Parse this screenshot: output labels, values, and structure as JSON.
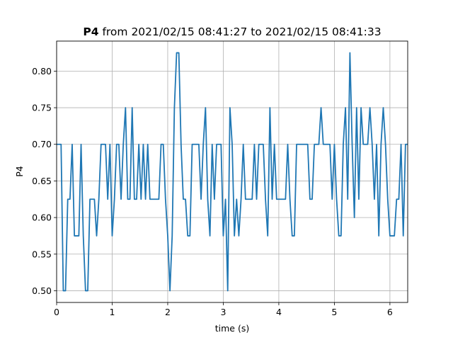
{
  "chart_data": {
    "type": "line",
    "title_bold": "P4",
    "title_rest": " from 2021/02/15 08:41:27 to 2021/02/15 08:41:33",
    "xlabel": "time (s)",
    "ylabel": "P4",
    "xlim": [
      0,
      6.32
    ],
    "ylim": [
      0.484,
      0.841
    ],
    "xticks": [
      0,
      1,
      2,
      3,
      4,
      5,
      6
    ],
    "yticks": [
      0.5,
      0.55,
      0.6,
      0.65,
      0.7,
      0.75,
      0.8
    ],
    "grid": true,
    "line_color": "#1f77b4",
    "series": [
      {
        "x": [
          0.0,
          0.08,
          0.12,
          0.16,
          0.2,
          0.24,
          0.28,
          0.32,
          0.36,
          0.4,
          0.44,
          0.48,
          0.52,
          0.56,
          0.6,
          0.64,
          0.68,
          0.72,
          0.76,
          0.8,
          0.84,
          0.88,
          0.92,
          0.96,
          1.0,
          1.04,
          1.08,
          1.12,
          1.16,
          1.2,
          1.24,
          1.28,
          1.32,
          1.36,
          1.4,
          1.44,
          1.48,
          1.52,
          1.56,
          1.6,
          1.64,
          1.68,
          1.72,
          1.76,
          1.8,
          1.84,
          1.88,
          1.92,
          1.96,
          2.0,
          2.04,
          2.08,
          2.12,
          2.16,
          2.2,
          2.24,
          2.28,
          2.32,
          2.36,
          2.4,
          2.44,
          2.48,
          2.52,
          2.56,
          2.6,
          2.64,
          2.68,
          2.72,
          2.76,
          2.8,
          2.84,
          2.88,
          2.92,
          2.96,
          3.0,
          3.04,
          3.08,
          3.12,
          3.16,
          3.2,
          3.24,
          3.28,
          3.32,
          3.36,
          3.4,
          3.44,
          3.48,
          3.52,
          3.56,
          3.6,
          3.64,
          3.68,
          3.72,
          3.76,
          3.8,
          3.84,
          3.88,
          3.92,
          3.96,
          4.0,
          4.04,
          4.08,
          4.12,
          4.16,
          4.2,
          4.24,
          4.28,
          4.32,
          4.36,
          4.4,
          4.44,
          4.48,
          4.52,
          4.56,
          4.6,
          4.64,
          4.68,
          4.72,
          4.76,
          4.8,
          4.84,
          4.88,
          4.92,
          4.96,
          5.0,
          5.04,
          5.08,
          5.12,
          5.16,
          5.2,
          5.24,
          5.28,
          5.32,
          5.36,
          5.4,
          5.44,
          5.48,
          5.52,
          5.56,
          5.6,
          5.64,
          5.68,
          5.72,
          5.76,
          5.8,
          5.84,
          5.88,
          5.92,
          5.96,
          6.0,
          6.04,
          6.08,
          6.12,
          6.16,
          6.2,
          6.24,
          6.28,
          6.32
        ],
        "y": [
          0.7,
          0.7,
          0.5,
          0.5,
          0.625,
          0.625,
          0.7,
          0.575,
          0.575,
          0.575,
          0.7,
          0.575,
          0.5,
          0.5,
          0.625,
          0.625,
          0.625,
          0.575,
          0.625,
          0.7,
          0.7,
          0.7,
          0.625,
          0.7,
          0.575,
          0.625,
          0.7,
          0.7,
          0.625,
          0.7,
          0.75,
          0.625,
          0.625,
          0.75,
          0.625,
          0.625,
          0.7,
          0.625,
          0.7,
          0.625,
          0.7,
          0.625,
          0.625,
          0.625,
          0.625,
          0.625,
          0.7,
          0.7,
          0.625,
          0.575,
          0.5,
          0.575,
          0.75,
          0.825,
          0.825,
          0.7,
          0.625,
          0.625,
          0.575,
          0.575,
          0.7,
          0.7,
          0.7,
          0.7,
          0.625,
          0.7,
          0.75,
          0.625,
          0.575,
          0.7,
          0.625,
          0.7,
          0.7,
          0.7,
          0.575,
          0.625,
          0.5,
          0.75,
          0.7,
          0.575,
          0.625,
          0.575,
          0.625,
          0.7,
          0.625,
          0.625,
          0.625,
          0.625,
          0.7,
          0.625,
          0.7,
          0.7,
          0.7,
          0.625,
          0.575,
          0.75,
          0.625,
          0.7,
          0.625,
          0.625,
          0.625,
          0.625,
          0.625,
          0.7,
          0.625,
          0.575,
          0.575,
          0.7,
          0.7,
          0.7,
          0.7,
          0.7,
          0.7,
          0.625,
          0.625,
          0.7,
          0.7,
          0.7,
          0.75,
          0.7,
          0.7,
          0.7,
          0.7,
          0.625,
          0.7,
          0.625,
          0.575,
          0.575,
          0.7,
          0.75,
          0.625,
          0.825,
          0.7,
          0.6,
          0.75,
          0.625,
          0.75,
          0.7,
          0.7,
          0.7,
          0.75,
          0.7,
          0.625,
          0.7,
          0.575,
          0.7,
          0.75,
          0.7,
          0.625,
          0.575,
          0.575,
          0.575,
          0.625,
          0.625,
          0.7,
          0.575,
          0.7,
          0.7
        ]
      }
    ]
  }
}
